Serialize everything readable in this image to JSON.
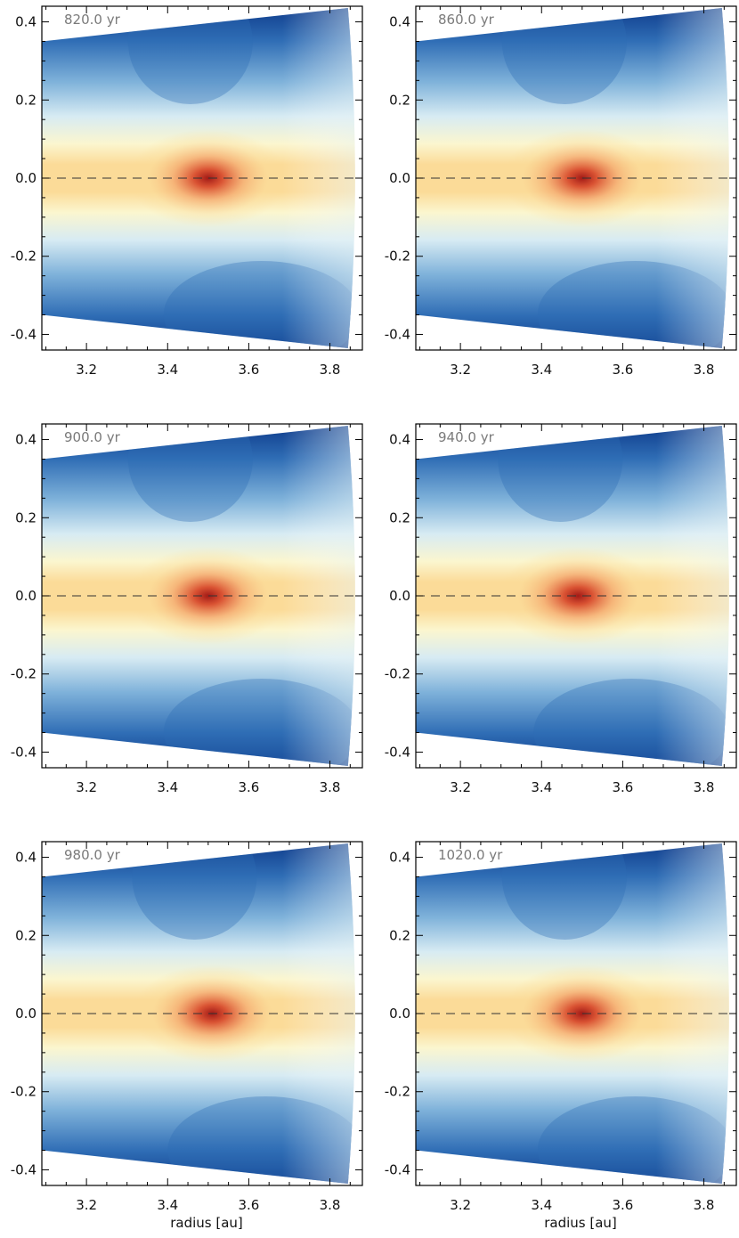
{
  "chart_data": {
    "type": "heatmap",
    "x_ticks": [
      "3.2",
      "3.4",
      "3.6",
      "3.8"
    ],
    "y_ticks": [
      "0.4",
      "0.2",
      "0.0",
      "-0.2",
      "-0.4"
    ],
    "xlim": [
      3.09,
      3.88
    ],
    "ylim": [
      -0.44,
      0.44
    ],
    "xlabel": "radius [au]",
    "colormap": [
      "#0d3a8a",
      "#2f6db5",
      "#7fb2da",
      "#d7ebf3",
      "#fbf6cf",
      "#fbdb98",
      "#f4a66c",
      "#d84c2e",
      "#a21a16"
    ],
    "midplane": {
      "y": 0.0,
      "style": "dashed"
    },
    "grid": false,
    "panels": [
      {
        "time": "820.0 yr",
        "core_x": 3.5,
        "core_y": 0.0,
        "show_xlabel": false
      },
      {
        "time": "860.0 yr",
        "core_x": 3.5,
        "core_y": 0.0,
        "show_xlabel": false
      },
      {
        "time": "900.0 yr",
        "core_x": 3.5,
        "core_y": 0.0,
        "show_xlabel": false
      },
      {
        "time": "940.0 yr",
        "core_x": 3.49,
        "core_y": 0.0,
        "show_xlabel": false
      },
      {
        "time": "980.0 yr",
        "core_x": 3.51,
        "core_y": 0.0,
        "show_xlabel": true
      },
      {
        "time": "1020.0 yr",
        "core_x": 3.5,
        "core_y": 0.0,
        "show_xlabel": true
      }
    ]
  }
}
